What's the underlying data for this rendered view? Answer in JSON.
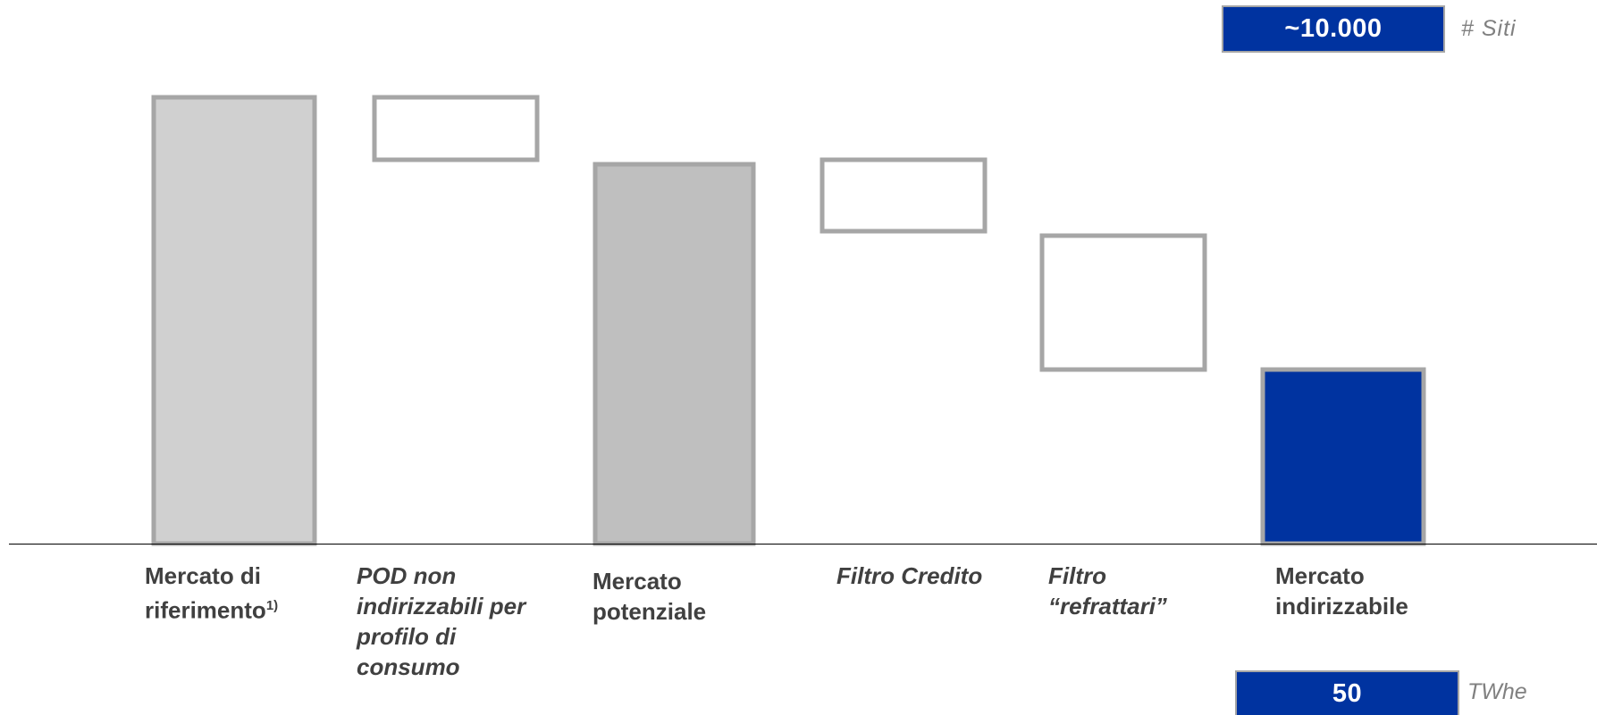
{
  "header": {
    "sites_value": "~10.000",
    "sites_unit": "# Siti"
  },
  "footer": {
    "energy_value": "50",
    "energy_unit": "TWhe"
  },
  "chart_data": {
    "type": "bar",
    "subtype": "waterfall",
    "unit": "TWhe",
    "categories": [
      "Mercato di riferimento1)",
      "POD non indirizzabili per profilo di consumo",
      "Mercato potenziale",
      "Filtro Credito",
      "Filtro “refrattari”",
      "Mercato indirizzabile"
    ],
    "label_lines": [
      [
        "Mercato di",
        "riferimento"
      ],
      [
        "POD non",
        "indirizzabili per",
        "profilo di",
        "consumo"
      ],
      [
        "Mercato",
        "potenziale"
      ],
      [
        "Filtro Credito"
      ],
      [
        "Filtro",
        "“refrattari”"
      ],
      [
        "Mercato",
        "indirizzabile"
      ]
    ],
    "label_italic": [
      false,
      true,
      false,
      true,
      true,
      false
    ],
    "footnote_marker": "1)",
    "bars": [
      {
        "kind": "total",
        "bottom": 0,
        "top": 100,
        "fill": "#d0d0d0",
        "stroke": "#a6a6a6"
      },
      {
        "kind": "delta",
        "bottom": 86,
        "top": 100,
        "fill": "#ffffff",
        "stroke": "#a6a6a6"
      },
      {
        "kind": "total",
        "bottom": 0,
        "top": 85,
        "fill": "#bfbfbf",
        "stroke": "#a6a6a6"
      },
      {
        "kind": "delta",
        "bottom": 70,
        "top": 86,
        "fill": "#ffffff",
        "stroke": "#a6a6a6"
      },
      {
        "kind": "delta",
        "bottom": 39,
        "top": 69,
        "fill": "#ffffff",
        "stroke": "#a6a6a6"
      },
      {
        "kind": "total",
        "bottom": 0,
        "top": 39,
        "fill": "#0033a0",
        "stroke": "#a6a6a6"
      }
    ],
    "highlight_value": 50,
    "grid": false,
    "legend": "none"
  },
  "colors": {
    "accent": "#0033a0",
    "bar_grey_light": "#d0d0d0",
    "bar_grey": "#bfbfbf",
    "border": "#a6a6a6",
    "text": "#404040",
    "unit_text": "#808080"
  }
}
